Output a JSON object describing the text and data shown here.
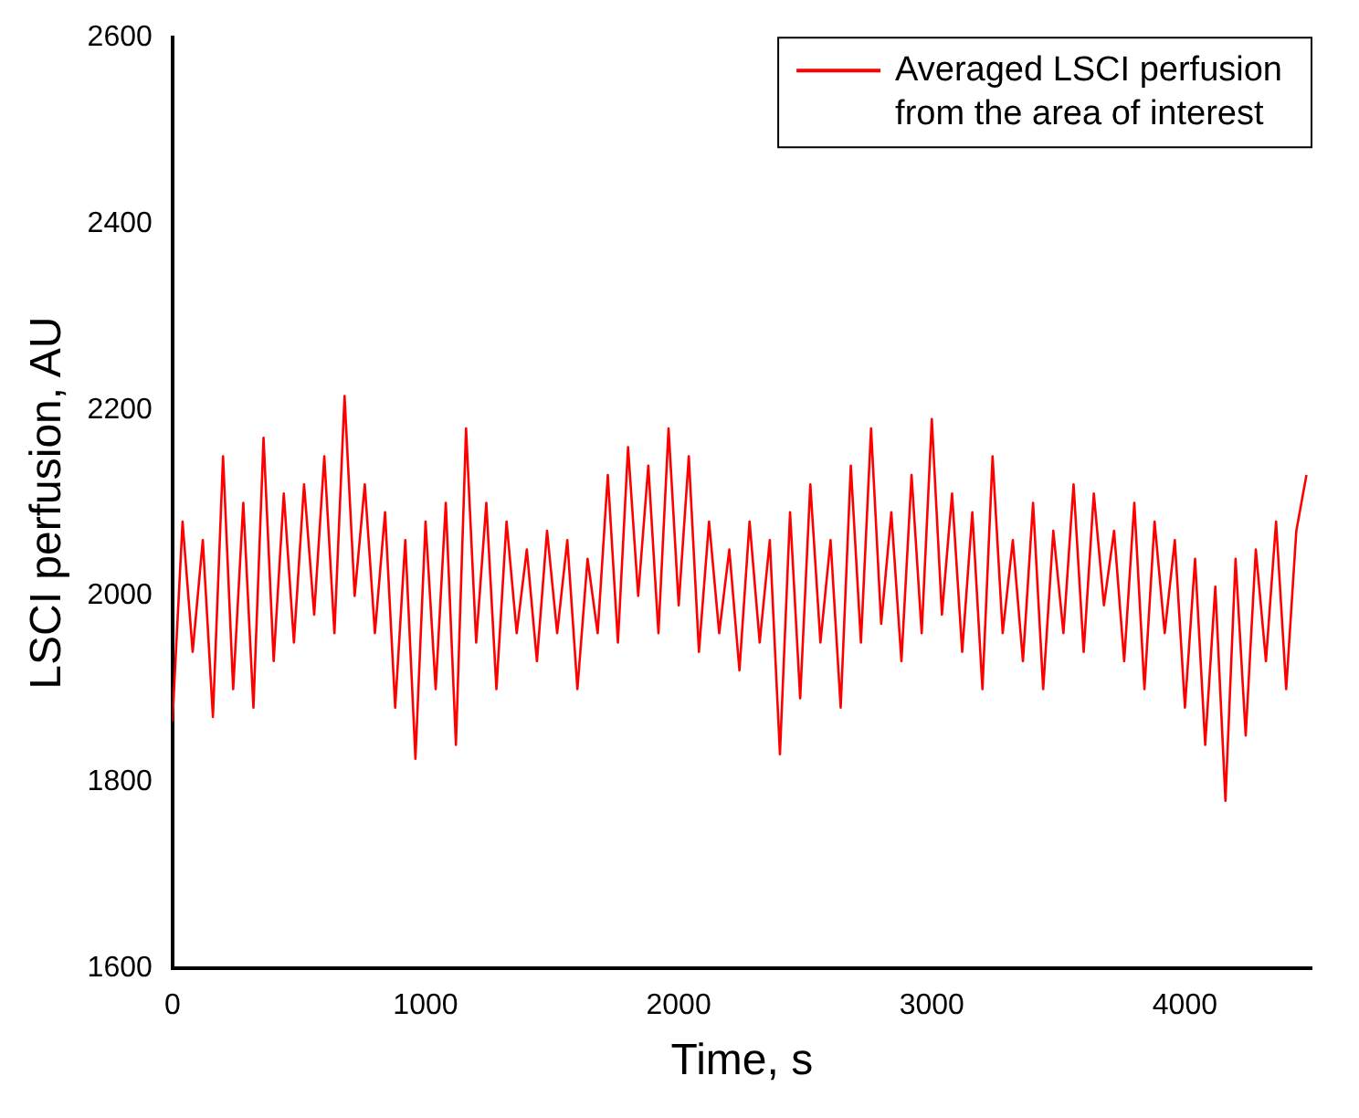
{
  "chart_data": {
    "type": "line",
    "xlabel": "Time, s",
    "ylabel": "LSCI perfusion, AU",
    "xlim": [
      0,
      4500
    ],
    "ylim": [
      1600,
      2600
    ],
    "xticks": [
      0,
      1000,
      2000,
      3000,
      4000
    ],
    "yticks": [
      1600,
      1800,
      2000,
      2200,
      2400,
      2600
    ],
    "grid": false,
    "legend": "top right",
    "marker": "none",
    "line_style": "solid",
    "x": [
      0,
      40,
      80,
      120,
      160,
      200,
      240,
      280,
      320,
      360,
      400,
      440,
      480,
      520,
      560,
      600,
      640,
      680,
      720,
      760,
      800,
      840,
      880,
      920,
      960,
      1000,
      1040,
      1080,
      1120,
      1160,
      1200,
      1240,
      1280,
      1320,
      1360,
      1400,
      1440,
      1480,
      1520,
      1560,
      1600,
      1640,
      1680,
      1720,
      1760,
      1800,
      1840,
      1880,
      1920,
      1960,
      2000,
      2040,
      2080,
      2120,
      2160,
      2200,
      2240,
      2280,
      2320,
      2360,
      2400,
      2440,
      2480,
      2520,
      2560,
      2600,
      2640,
      2680,
      2720,
      2760,
      2800,
      2840,
      2880,
      2920,
      2960,
      3000,
      3040,
      3080,
      3120,
      3160,
      3200,
      3240,
      3280,
      3320,
      3360,
      3400,
      3440,
      3480,
      3520,
      3560,
      3600,
      3640,
      3680,
      3720,
      3760,
      3800,
      3840,
      3880,
      3920,
      3960,
      4000,
      4040,
      4080,
      4120,
      4160,
      4200,
      4240,
      4280,
      4320,
      4360,
      4400,
      4440,
      4480
    ],
    "series": [
      {
        "name": "Averaged LSCI perfusion\nfrom the area of interest",
        "color": "#ff0000",
        "values": [
          1865,
          2080,
          1940,
          2060,
          1870,
          2150,
          1900,
          2100,
          1880,
          2170,
          1930,
          2110,
          1950,
          2120,
          1980,
          2150,
          1960,
          2215,
          2000,
          2120,
          1960,
          2090,
          1880,
          2060,
          1825,
          2080,
          1900,
          2100,
          1840,
          2180,
          1950,
          2100,
          1900,
          2080,
          1960,
          2050,
          1930,
          2070,
          1960,
          2060,
          1900,
          2040,
          1960,
          2130,
          1950,
          2160,
          2000,
          2140,
          1960,
          2180,
          1990,
          2150,
          1940,
          2080,
          1960,
          2050,
          1920,
          2080,
          1950,
          2060,
          1830,
          2090,
          1890,
          2120,
          1950,
          2060,
          1880,
          2140,
          1950,
          2180,
          1970,
          2090,
          1930,
          2130,
          1960,
          2190,
          1980,
          2110,
          1940,
          2090,
          1900,
          2150,
          1960,
          2060,
          1930,
          2100,
          1900,
          2070,
          1960,
          2120,
          1940,
          2110,
          1990,
          2070,
          1930,
          2100,
          1900,
          2080,
          1960,
          2060,
          1880,
          2040,
          1840,
          2010,
          1780,
          2040,
          1850,
          2050,
          1930,
          2080,
          1900,
          2070,
          2130
        ]
      }
    ]
  }
}
